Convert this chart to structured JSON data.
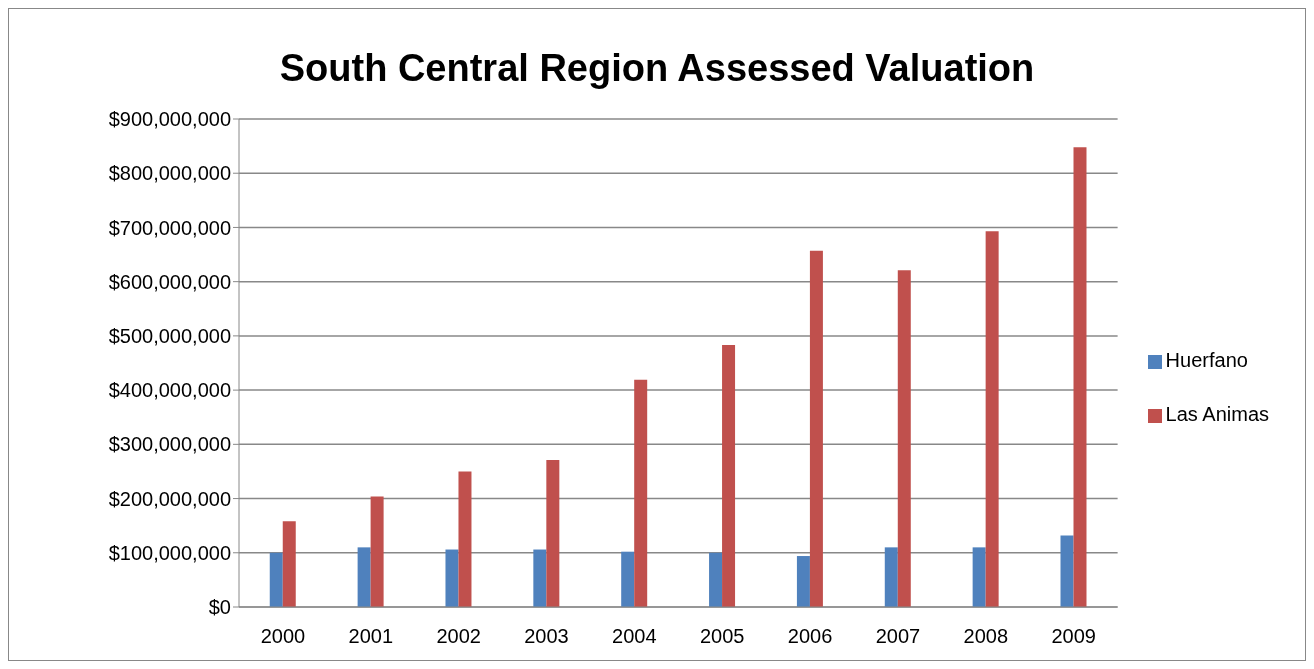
{
  "chart_data": {
    "type": "bar",
    "title": "South Central Region Assessed Valuation",
    "categories": [
      "2000",
      "2001",
      "2002",
      "2003",
      "2004",
      "2005",
      "2006",
      "2007",
      "2008",
      "2009"
    ],
    "series": [
      {
        "name": "Huerfano",
        "color": "#4f81bd",
        "values": [
          100000000,
          110000000,
          106000000,
          106000000,
          102000000,
          100000000,
          94000000,
          110000000,
          110000000,
          132000000
        ]
      },
      {
        "name": "Las Animas",
        "color": "#c0504d",
        "values": [
          158000000,
          204000000,
          250000000,
          271000000,
          419000000,
          483000000,
          657000000,
          621000000,
          693000000,
          848000000
        ]
      }
    ],
    "ylim": [
      0,
      900000000
    ],
    "yticks": [
      {
        "value": 0,
        "label": "$0"
      },
      {
        "value": 100000000,
        "label": "$100,000,000"
      },
      {
        "value": 200000000,
        "label": "$200,000,000"
      },
      {
        "value": 300000000,
        "label": "$300,000,000"
      },
      {
        "value": 400000000,
        "label": "$400,000,000"
      },
      {
        "value": 500000000,
        "label": "$500,000,000"
      },
      {
        "value": 600000000,
        "label": "$600,000,000"
      },
      {
        "value": 700000000,
        "label": "$700,000,000"
      },
      {
        "value": 800000000,
        "label": "$800,000,000"
      },
      {
        "value": 900000000,
        "label": "$900,000,000"
      }
    ],
    "grid": "y",
    "legend": "right"
  }
}
